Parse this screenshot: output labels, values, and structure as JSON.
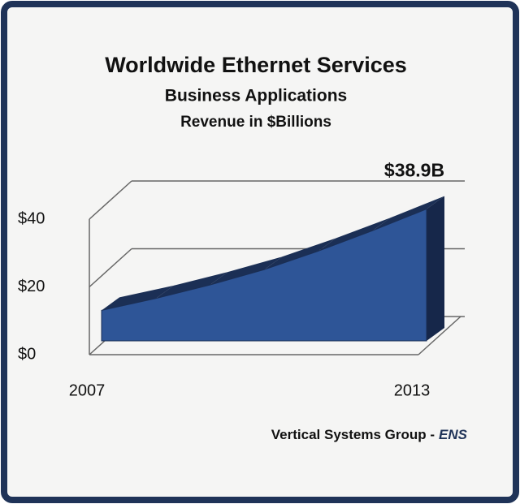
{
  "chart_data": {
    "type": "area3d",
    "title": "Worldwide Ethernet Services",
    "subtitle": "Business Applications",
    "unit_label": "Revenue in $Billions",
    "categories": [
      "2007",
      null,
      null,
      null,
      null,
      null,
      "2013"
    ],
    "values": [
      9,
      12.5,
      16.5,
      21,
      26.5,
      32.5,
      38.9
    ],
    "value_labels": [
      null,
      null,
      null,
      null,
      null,
      null,
      "$38.9B"
    ],
    "color": "#2e5597",
    "ylim": [
      0,
      40
    ],
    "yticks": [
      {
        "value": 0,
        "label": "$0"
      },
      {
        "value": 20,
        "label": "$20"
      },
      {
        "value": 40,
        "label": "$40"
      }
    ],
    "grid": true,
    "source": "Vertical Systems Group -",
    "source_emphasis": "ENS"
  }
}
